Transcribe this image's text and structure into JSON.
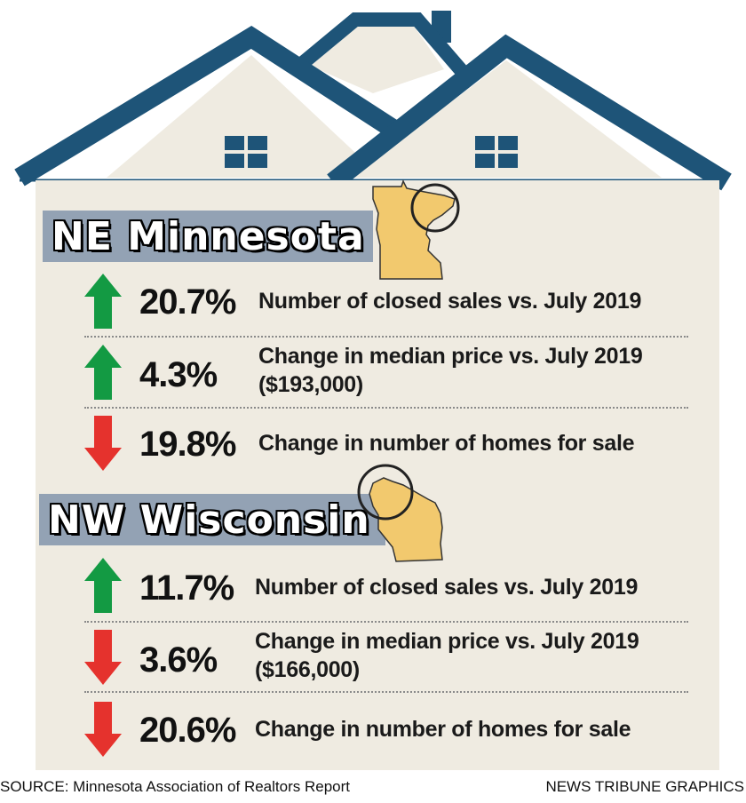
{
  "colors": {
    "roof": "#1e5478",
    "house_body": "#efebe1",
    "banner": "#93a2b4",
    "state_fill": "#f2c96e",
    "arrow_up": "#139a43",
    "arrow_down": "#e5322d"
  },
  "sections": [
    {
      "title": "NE Minnesota",
      "map_icon": "minnesota-map-icon",
      "stats": [
        {
          "direction": "up",
          "icon": "arrow-up-icon",
          "percent": "20.7%",
          "line1": "Number of closed sales vs. July 2019",
          "line2": ""
        },
        {
          "direction": "up",
          "icon": "arrow-up-icon",
          "percent": "4.3%",
          "line1": "Change in median price vs. July 2019",
          "line2": "($193,000)"
        },
        {
          "direction": "down",
          "icon": "arrow-down-icon",
          "percent": "19.8%",
          "line1": "Change in number of homes for sale",
          "line2": ""
        }
      ]
    },
    {
      "title": "NW Wisconsin",
      "map_icon": "wisconsin-map-icon",
      "stats": [
        {
          "direction": "up",
          "icon": "arrow-up-icon",
          "percent": "11.7%",
          "line1": "Number of closed sales vs. July 2019",
          "line2": ""
        },
        {
          "direction": "down",
          "icon": "arrow-down-icon",
          "percent": "3.6%",
          "line1": "Change in median price vs. July 2019",
          "line2": "($166,000)"
        },
        {
          "direction": "down",
          "icon": "arrow-down-icon",
          "percent": "20.6%",
          "line1": "Change in number of homes for sale",
          "line2": ""
        }
      ]
    }
  ],
  "footer": {
    "source": "SOURCE: Minnesota Association of Realtors Report",
    "credit": "NEWS TRIBUNE GRAPHICS"
  }
}
